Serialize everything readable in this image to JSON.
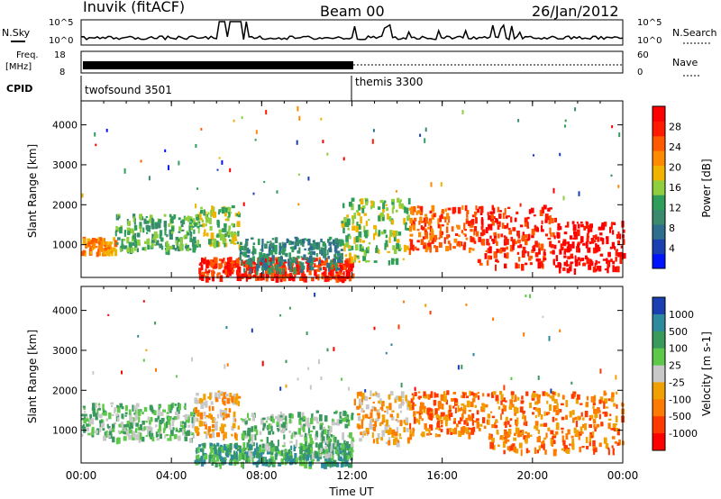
{
  "header": {
    "title": "Inuvik (fitACF)",
    "beam": "Beam 00",
    "date": "26/Jan/2012"
  },
  "noise_panel": {
    "left_label": "N.Sky",
    "right_label": "N.Search",
    "left_ticks": [
      "10^5",
      "10^0"
    ],
    "right_ticks": [
      "10^5",
      "10^0"
    ]
  },
  "freq_panel": {
    "left_label_1": "Freq.",
    "left_label_2": "[MHz]",
    "left_ticks": [
      "18",
      "8"
    ],
    "right_label": "Nave",
    "right_ticks": [
      "60",
      "0"
    ]
  },
  "cpid": {
    "label": "CPID",
    "segments": [
      {
        "name": "twofsound 3501",
        "start_hour": 0
      },
      {
        "name": "themis 3300",
        "start_hour": 12
      }
    ]
  },
  "chart_data": [
    {
      "type": "heatmap",
      "quantity": "Power",
      "ylabel": "Slant Range [km]",
      "yticks": [
        1000,
        2000,
        3000,
        4000
      ],
      "ylim": [
        180,
        4600
      ],
      "colorbar_label": "Power [dB]",
      "colorbar_ticks": [
        "4",
        "8",
        "12",
        "16",
        "20",
        "24",
        "28"
      ],
      "colors": [
        "#0014ff",
        "#1a3fb0",
        "#2e6e8e",
        "#3a8a6e",
        "#2f9e5a",
        "#8fcf3f",
        "#f0b400",
        "#ff8a00",
        "#ff5a00",
        "#ff1a00",
        "#ff0000"
      ],
      "echo_regions": [
        {
          "x": [
            0.0,
            1.5
          ],
          "y": [
            800,
            1200
          ],
          "level": 7
        },
        {
          "x": [
            1.5,
            5.2
          ],
          "y": [
            900,
            1800
          ],
          "level": 4
        },
        {
          "x": [
            5.2,
            7.0
          ],
          "y": [
            1000,
            2000
          ],
          "level": 5
        },
        {
          "x": [
            5.2,
            12.0
          ],
          "y": [
            180,
            700
          ],
          "level": 9
        },
        {
          "x": [
            7.0,
            11.5
          ],
          "y": [
            400,
            1200
          ],
          "level": 3
        },
        {
          "x": [
            11.5,
            14.5
          ],
          "y": [
            600,
            2200
          ],
          "level": 5
        },
        {
          "x": [
            14.5,
            17.5
          ],
          "y": [
            900,
            2000
          ],
          "level": 8
        },
        {
          "x": [
            17.5,
            21.0
          ],
          "y": [
            500,
            2000
          ],
          "level": 9
        },
        {
          "x": [
            21.0,
            24.0
          ],
          "y": [
            400,
            1600
          ],
          "level": 10
        }
      ]
    },
    {
      "type": "heatmap",
      "quantity": "Velocity",
      "ylabel": "Slant Range [km]",
      "yticks": [
        1000,
        2000,
        3000,
        4000
      ],
      "ylim": [
        180,
        4600
      ],
      "colorbar_label": "Velocity [m s-1]",
      "colorbar_ticks": [
        "1000",
        "500",
        "100",
        "25",
        "-25",
        "-100",
        "-500",
        "-1000"
      ],
      "colors": [
        "#1a3fb0",
        "#2e8a9e",
        "#3a9a5e",
        "#5ec84a",
        "#c8c8c8",
        "#f0a000",
        "#ff7a00",
        "#ff3a00",
        "#ff0000"
      ],
      "echo_regions": [
        {
          "x": [
            0.0,
            5.0
          ],
          "y": [
            800,
            1700
          ],
          "level": 3
        },
        {
          "x": [
            5.0,
            7.0
          ],
          "y": [
            900,
            2000
          ],
          "level": 5
        },
        {
          "x": [
            5.0,
            12.0
          ],
          "y": [
            180,
            700
          ],
          "level": 2
        },
        {
          "x": [
            7.0,
            12.0
          ],
          "y": [
            400,
            1500
          ],
          "level": 3
        },
        {
          "x": [
            12.0,
            14.5
          ],
          "y": [
            700,
            2000
          ],
          "level": 5
        },
        {
          "x": [
            14.5,
            18.0
          ],
          "y": [
            900,
            2000
          ],
          "level": 6
        },
        {
          "x": [
            18.0,
            24.0
          ],
          "y": [
            500,
            2000
          ],
          "level": 6
        }
      ]
    }
  ],
  "time_axis": {
    "xlabel": "Time UT",
    "tick_labels": [
      "00:00",
      "04:00",
      "08:00",
      "12:00",
      "16:00",
      "20:00",
      "00:00"
    ],
    "xlim_hours": [
      0,
      24
    ]
  },
  "colors": {
    "axes": "#000000",
    "background": "#ffffff"
  }
}
